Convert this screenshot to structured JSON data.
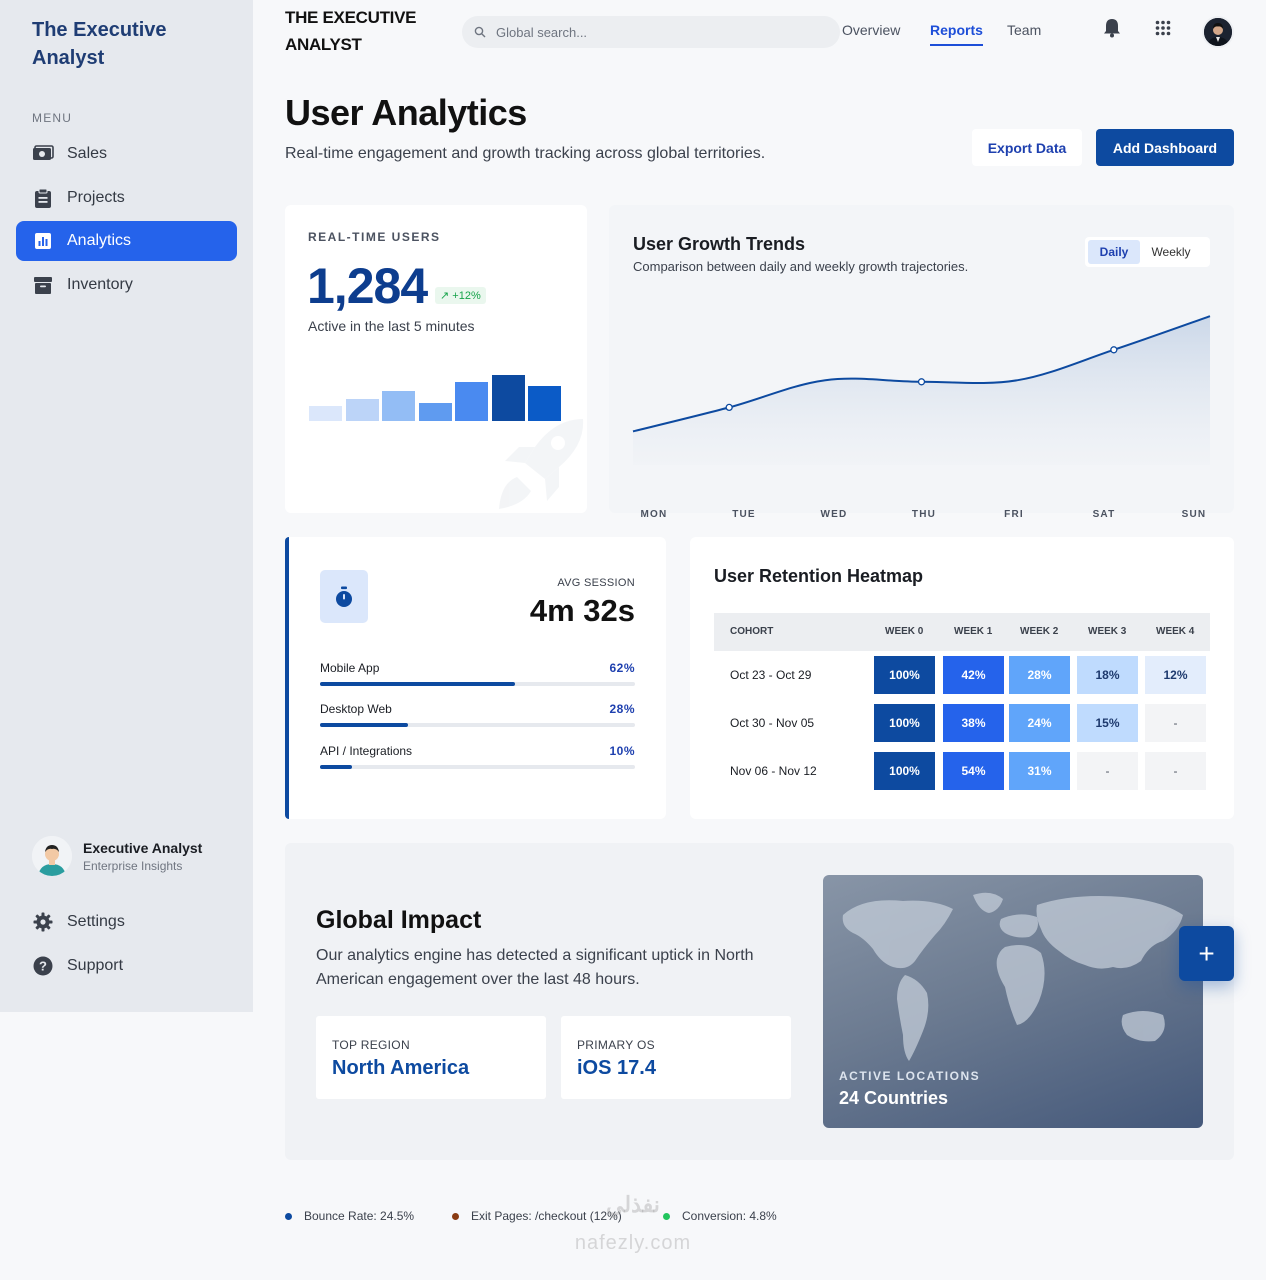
{
  "sidebar": {
    "brand": "The Executive Analyst",
    "menu_label": "MENU",
    "items": [
      {
        "label": "Sales",
        "icon": "sales-icon"
      },
      {
        "label": "Projects",
        "icon": "clipboard-icon"
      },
      {
        "label": "Analytics",
        "icon": "analytics-icon",
        "active": true
      },
      {
        "label": "Inventory",
        "icon": "archive-icon"
      }
    ],
    "profile": {
      "name": "Executive Analyst",
      "subtitle": "Enterprise Insights"
    },
    "bottom_items": [
      {
        "label": "Settings",
        "icon": "gear-icon"
      },
      {
        "label": "Support",
        "icon": "help-icon"
      }
    ]
  },
  "topbar": {
    "brand": "THE EXECUTIVE ANALYST",
    "search_placeholder": "Global search...",
    "links": [
      "Overview",
      "Reports",
      "Team"
    ],
    "active_link": "Reports"
  },
  "header": {
    "title": "User Analytics",
    "subtitle": "Real-time engagement and growth tracking across global territories.",
    "export_label": "Export Data",
    "add_label": "Add Dashboard"
  },
  "realtime": {
    "label": "REAL-TIME USERS",
    "value": "1,284",
    "change": "+12%",
    "caption": "Active in the last 5 minutes",
    "bar_levels": [
      0.24,
      0.35,
      0.47,
      0.29,
      0.62,
      0.73,
      0.55
    ],
    "bar_colors": [
      "#dbe7fb",
      "#bcd4f8",
      "#93bdf5",
      "#5f9bf0",
      "#4a8af0",
      "#0d4aa0",
      "#0b5bc7"
    ]
  },
  "growth": {
    "title": "User Growth Trends",
    "subtitle": "Comparison between daily and weekly growth trajectories.",
    "toggle": [
      "Daily",
      "Weekly"
    ],
    "active_toggle": "Daily"
  },
  "chart_data": {
    "type": "area",
    "categories": [
      "MON",
      "TUE",
      "WED",
      "THU",
      "FRI",
      "SAT",
      "SUN"
    ],
    "values": [
      0.21,
      0.36,
      0.53,
      0.52,
      0.53,
      0.72,
      0.93
    ],
    "xlabel": "",
    "ylabel": "",
    "grid": false,
    "color": "#0d4aa0"
  },
  "session": {
    "label": "AVG SESSION",
    "value": "4m 32s",
    "platforms": [
      {
        "name": "Mobile App",
        "pct": "62%",
        "share": 0.62
      },
      {
        "name": "Desktop Web",
        "pct": "28%",
        "share": 0.28
      },
      {
        "name": "API / Integrations",
        "pct": "10%",
        "share": 0.1
      }
    ]
  },
  "heatmap": {
    "title": "User Retention Heatmap",
    "columns": [
      "COHORT",
      "WEEK 0",
      "WEEK 1",
      "WEEK 2",
      "WEEK 3",
      "WEEK 4"
    ],
    "rows": [
      {
        "cohort": "Oct 23 - Oct 29",
        "cells": [
          "100%",
          "42%",
          "28%",
          "18%",
          "12%"
        ]
      },
      {
        "cohort": "Oct 30 - Nov 05",
        "cells": [
          "100%",
          "38%",
          "24%",
          "15%",
          "-"
        ]
      },
      {
        "cohort": "Nov 06 - Nov 12",
        "cells": [
          "100%",
          "54%",
          "31%",
          "-",
          "-"
        ]
      }
    ],
    "scale_colors": [
      "#0d4aa0",
      "#2563eb",
      "#60a5fa",
      "#bfdbfe",
      "#e6effd",
      "#f3f4f6"
    ]
  },
  "impact": {
    "title": "Global Impact",
    "text": "Our analytics engine has detected a significant uptick in North American engagement over the last 48 hours.",
    "stats": [
      {
        "label": "TOP REGION",
        "value": "North America"
      },
      {
        "label": "PRIMARY OS",
        "value": "iOS 17.4"
      }
    ],
    "map_label": "ACTIVE LOCATIONS",
    "map_value": "24 Countries",
    "fab_label": "+"
  },
  "footer": [
    {
      "text": "Bounce Rate: 24.5%",
      "color": "#0d4aa0"
    },
    {
      "text": "Exit Pages: /checkout (12%)",
      "color": "#8a3b12"
    },
    {
      "text": "Conversion: 4.8%",
      "color": "#22c55e"
    }
  ],
  "watermark": {
    "line1": "نفذلي",
    "line2": "nafezly.com"
  }
}
